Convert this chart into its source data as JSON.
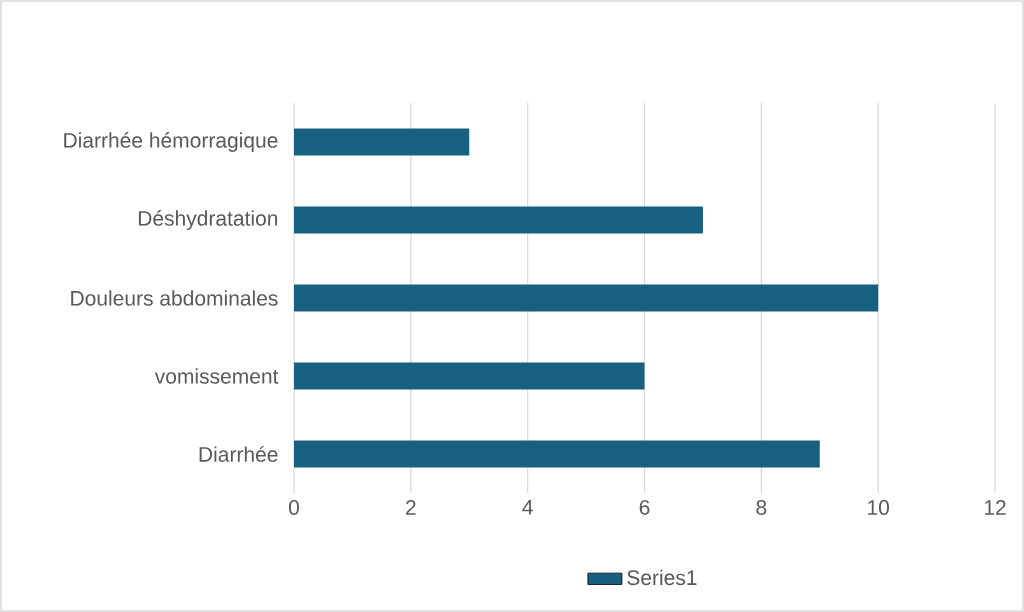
{
  "chart_data": {
    "type": "bar",
    "orientation": "horizontal",
    "categories": [
      "Diarrhée hémorragique",
      "Déshydratation",
      "Douleurs abdominales",
      "vomissement",
      "Diarrhée"
    ],
    "series": [
      {
        "name": "Series1",
        "color": "#17607f",
        "values": [
          3,
          7,
          10,
          6,
          9
        ]
      }
    ],
    "xlim": [
      0,
      12
    ],
    "xticks": [
      0,
      2,
      4,
      6,
      8,
      10,
      12
    ],
    "grid": "x",
    "legend": "bottom"
  }
}
